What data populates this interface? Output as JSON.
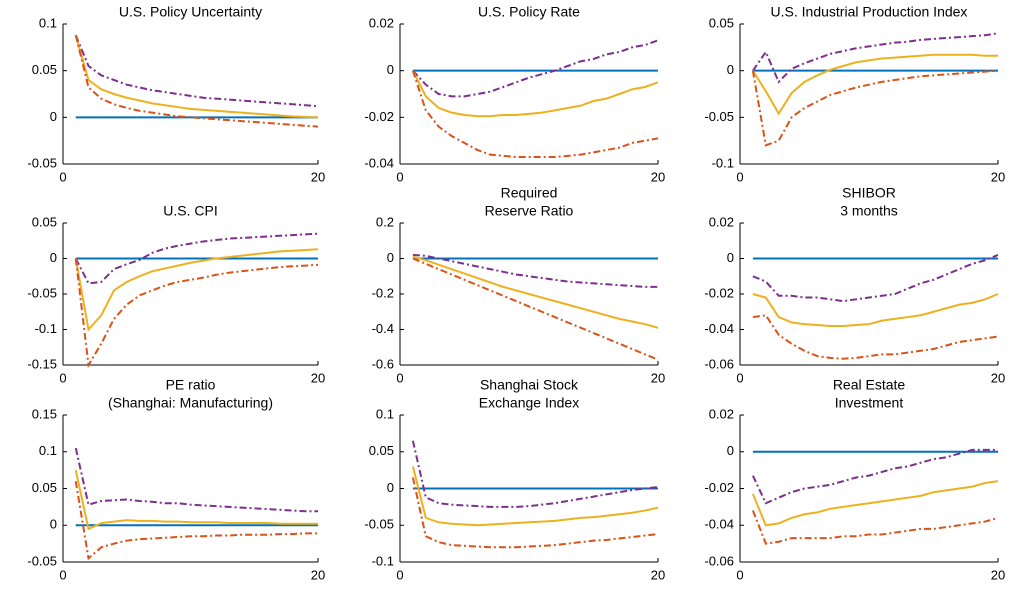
{
  "chart_data": [
    {
      "type": "line",
      "title": [
        "U.S. Policy Uncertainty"
      ],
      "x": [
        1,
        2,
        3,
        4,
        5,
        6,
        7,
        8,
        9,
        10,
        11,
        12,
        13,
        14,
        15,
        16,
        17,
        18,
        19,
        20
      ],
      "xlim": [
        0,
        20
      ],
      "xticks": [
        0,
        20
      ],
      "ylim": [
        -0.05,
        0.1
      ],
      "yticks": [
        -0.05,
        0,
        0.05,
        0.1
      ],
      "zero_line_color": "#0072BD",
      "series": [
        {
          "color": "#7E2F8E",
          "dash": "dashdot",
          "values": [
            0.088,
            0.055,
            0.045,
            0.04,
            0.035,
            0.032,
            0.029,
            0.027,
            0.025,
            0.023,
            0.021,
            0.02,
            0.019,
            0.018,
            0.017,
            0.016,
            0.015,
            0.014,
            0.013,
            0.012
          ]
        },
        {
          "color": "#EDB120",
          "dash": "solid",
          "values": [
            0.088,
            0.04,
            0.03,
            0.025,
            0.021,
            0.018,
            0.015,
            0.013,
            0.011,
            0.009,
            0.008,
            0.007,
            0.006,
            0.005,
            0.004,
            0.003,
            0.002,
            0.001,
            0.0005,
            0
          ]
        },
        {
          "color": "#D95319",
          "dash": "dashdot",
          "values": [
            0.088,
            0.032,
            0.02,
            0.014,
            0.01,
            0.007,
            0.005,
            0.003,
            0.001,
            0,
            -0.001,
            -0.002,
            -0.003,
            -0.004,
            -0.005,
            -0.006,
            -0.007,
            -0.008,
            -0.009,
            -0.01
          ]
        }
      ]
    },
    {
      "type": "line",
      "title": [
        "U.S. Policy Rate"
      ],
      "x": [
        1,
        2,
        3,
        4,
        5,
        6,
        7,
        8,
        9,
        10,
        11,
        12,
        13,
        14,
        15,
        16,
        17,
        18,
        19,
        20
      ],
      "xlim": [
        0,
        20
      ],
      "xticks": [
        0,
        20
      ],
      "ylim": [
        -0.04,
        0.02
      ],
      "yticks": [
        -0.04,
        -0.02,
        0,
        0.02
      ],
      "zero_line_color": "#0072BD",
      "series": [
        {
          "color": "#7E2F8E",
          "dash": "dashdot",
          "values": [
            0,
            -0.006,
            -0.01,
            -0.011,
            -0.011,
            -0.01,
            -0.009,
            -0.007,
            -0.005,
            -0.003,
            -0.0015,
            0,
            0.002,
            0.004,
            0.005,
            0.007,
            0.008,
            0.01,
            0.011,
            0.013
          ]
        },
        {
          "color": "#EDB120",
          "dash": "solid",
          "values": [
            0,
            -0.011,
            -0.016,
            -0.018,
            -0.019,
            -0.0195,
            -0.0195,
            -0.019,
            -0.019,
            -0.0185,
            -0.018,
            -0.017,
            -0.016,
            -0.015,
            -0.013,
            -0.012,
            -0.01,
            -0.008,
            -0.007,
            -0.005
          ]
        },
        {
          "color": "#D95319",
          "dash": "dashdot",
          "values": [
            0,
            -0.017,
            -0.024,
            -0.028,
            -0.031,
            -0.034,
            -0.036,
            -0.0365,
            -0.037,
            -0.037,
            -0.037,
            -0.037,
            -0.0365,
            -0.036,
            -0.035,
            -0.034,
            -0.033,
            -0.031,
            -0.03,
            -0.029
          ]
        }
      ]
    },
    {
      "type": "line",
      "title": [
        "U.S. Industrial Production Index"
      ],
      "x": [
        1,
        2,
        3,
        4,
        5,
        6,
        7,
        8,
        9,
        10,
        11,
        12,
        13,
        14,
        15,
        16,
        17,
        18,
        19,
        20
      ],
      "xlim": [
        0,
        20
      ],
      "xticks": [
        0,
        20
      ],
      "ylim": [
        -0.1,
        0.05
      ],
      "yticks": [
        -0.1,
        -0.05,
        0,
        0.05
      ],
      "zero_line_color": "#0072BD",
      "series": [
        {
          "color": "#7E2F8E",
          "dash": "dashdot",
          "values": [
            0,
            0.02,
            -0.012,
            0.002,
            0.008,
            0.013,
            0.018,
            0.021,
            0.024,
            0.026,
            0.028,
            0.03,
            0.031,
            0.033,
            0.034,
            0.035,
            0.036,
            0.037,
            0.038,
            0.04
          ]
        },
        {
          "color": "#EDB120",
          "dash": "solid",
          "values": [
            0,
            -0.022,
            -0.046,
            -0.024,
            -0.012,
            -0.005,
            0.001,
            0.005,
            0.009,
            0.011,
            0.013,
            0.014,
            0.015,
            0.016,
            0.017,
            0.017,
            0.017,
            0.017,
            0.016,
            0.016
          ]
        },
        {
          "color": "#D95319",
          "dash": "dashdot",
          "values": [
            0,
            -0.08,
            -0.075,
            -0.05,
            -0.04,
            -0.033,
            -0.026,
            -0.022,
            -0.018,
            -0.015,
            -0.012,
            -0.01,
            -0.008,
            -0.006,
            -0.005,
            -0.004,
            -0.003,
            -0.002,
            -0.001,
            0
          ]
        }
      ]
    },
    {
      "type": "line",
      "title": [
        "U.S. CPI"
      ],
      "x": [
        1,
        2,
        3,
        4,
        5,
        6,
        7,
        8,
        9,
        10,
        11,
        12,
        13,
        14,
        15,
        16,
        17,
        18,
        19,
        20
      ],
      "xlim": [
        0,
        20
      ],
      "xticks": [
        0,
        20
      ],
      "ylim": [
        -0.15,
        0.05
      ],
      "yticks": [
        -0.15,
        -0.1,
        -0.05,
        0,
        0.05
      ],
      "zero_line_color": "#0072BD",
      "series": [
        {
          "color": "#7E2F8E",
          "dash": "dashdot",
          "values": [
            0,
            -0.035,
            -0.033,
            -0.015,
            -0.008,
            -0.002,
            0.008,
            0.014,
            0.018,
            0.021,
            0.024,
            0.026,
            0.028,
            0.029,
            0.03,
            0.031,
            0.032,
            0.033,
            0.034,
            0.035
          ]
        },
        {
          "color": "#EDB120",
          "dash": "solid",
          "values": [
            0,
            -0.1,
            -0.08,
            -0.045,
            -0.033,
            -0.025,
            -0.018,
            -0.014,
            -0.01,
            -0.006,
            -0.003,
            0,
            0.002,
            0.004,
            0.006,
            0.008,
            0.01,
            0.011,
            0.012,
            0.013
          ]
        },
        {
          "color": "#D95319",
          "dash": "dashdot",
          "values": [
            0,
            -0.15,
            -0.12,
            -0.085,
            -0.065,
            -0.052,
            -0.045,
            -0.038,
            -0.033,
            -0.03,
            -0.027,
            -0.023,
            -0.02,
            -0.018,
            -0.016,
            -0.014,
            -0.012,
            -0.011,
            -0.01,
            -0.009
          ]
        }
      ]
    },
    {
      "type": "line",
      "title": [
        "Required",
        "Reserve Ratio"
      ],
      "x": [
        1,
        2,
        3,
        4,
        5,
        6,
        7,
        8,
        9,
        10,
        11,
        12,
        13,
        14,
        15,
        16,
        17,
        18,
        19,
        20
      ],
      "xlim": [
        0,
        20
      ],
      "xticks": [
        0,
        20
      ],
      "ylim": [
        -0.6,
        0.2
      ],
      "yticks": [
        -0.6,
        -0.4,
        -0.2,
        0,
        0.2
      ],
      "zero_line_color": "#0072BD",
      "series": [
        {
          "color": "#7E2F8E",
          "dash": "dashdot",
          "values": [
            0.02,
            0.015,
            0,
            -0.015,
            -0.03,
            -0.045,
            -0.06,
            -0.075,
            -0.09,
            -0.1,
            -0.11,
            -0.12,
            -0.13,
            -0.135,
            -0.14,
            -0.145,
            -0.15,
            -0.155,
            -0.16,
            -0.16
          ]
        },
        {
          "color": "#EDB120",
          "dash": "solid",
          "values": [
            0.01,
            -0.01,
            -0.035,
            -0.06,
            -0.085,
            -0.11,
            -0.135,
            -0.16,
            -0.18,
            -0.2,
            -0.22,
            -0.24,
            -0.26,
            -0.28,
            -0.3,
            -0.32,
            -0.34,
            -0.355,
            -0.37,
            -0.39
          ]
        },
        {
          "color": "#D95319",
          "dash": "dashdot",
          "values": [
            0,
            -0.03,
            -0.06,
            -0.09,
            -0.12,
            -0.15,
            -0.18,
            -0.21,
            -0.24,
            -0.27,
            -0.3,
            -0.33,
            -0.36,
            -0.39,
            -0.42,
            -0.45,
            -0.48,
            -0.51,
            -0.54,
            -0.57
          ]
        }
      ]
    },
    {
      "type": "line",
      "title": [
        "SHIBOR",
        "3 months"
      ],
      "x": [
        1,
        2,
        3,
        4,
        5,
        6,
        7,
        8,
        9,
        10,
        11,
        12,
        13,
        14,
        15,
        16,
        17,
        18,
        19,
        20
      ],
      "xlim": [
        0,
        20
      ],
      "xticks": [
        0,
        20
      ],
      "ylim": [
        -0.06,
        0.02
      ],
      "yticks": [
        -0.06,
        -0.04,
        -0.02,
        0,
        0.02
      ],
      "zero_line_color": "#0072BD",
      "series": [
        {
          "color": "#7E2F8E",
          "dash": "dashdot",
          "values": [
            -0.01,
            -0.013,
            -0.021,
            -0.021,
            -0.022,
            -0.022,
            -0.023,
            -0.024,
            -0.023,
            -0.022,
            -0.021,
            -0.02,
            -0.017,
            -0.014,
            -0.012,
            -0.009,
            -0.006,
            -0.003,
            -0.001,
            0.002
          ]
        },
        {
          "color": "#EDB120",
          "dash": "solid",
          "values": [
            -0.02,
            -0.022,
            -0.033,
            -0.036,
            -0.037,
            -0.0375,
            -0.038,
            -0.038,
            -0.0375,
            -0.037,
            -0.035,
            -0.034,
            -0.033,
            -0.032,
            -0.03,
            -0.028,
            -0.026,
            -0.025,
            -0.023,
            -0.02
          ]
        },
        {
          "color": "#D95319",
          "dash": "dashdot",
          "values": [
            -0.033,
            -0.032,
            -0.043,
            -0.048,
            -0.052,
            -0.055,
            -0.056,
            -0.0565,
            -0.056,
            -0.055,
            -0.054,
            -0.054,
            -0.053,
            -0.052,
            -0.051,
            -0.049,
            -0.047,
            -0.046,
            -0.045,
            -0.044
          ]
        }
      ]
    },
    {
      "type": "line",
      "title": [
        "PE ratio",
        "(Shanghai: Manufacturing)"
      ],
      "x": [
        1,
        2,
        3,
        4,
        5,
        6,
        7,
        8,
        9,
        10,
        11,
        12,
        13,
        14,
        15,
        16,
        17,
        18,
        19,
        20
      ],
      "xlim": [
        0,
        20
      ],
      "xticks": [
        0,
        20
      ],
      "ylim": [
        -0.05,
        0.15
      ],
      "yticks": [
        -0.05,
        0,
        0.05,
        0.1,
        0.15
      ],
      "zero_line_color": "#0072BD",
      "series": [
        {
          "color": "#7E2F8E",
          "dash": "dashdot",
          "values": [
            0.105,
            0.028,
            0.033,
            0.034,
            0.035,
            0.033,
            0.032,
            0.03,
            0.03,
            0.028,
            0.027,
            0.026,
            0.025,
            0.024,
            0.023,
            0.022,
            0.021,
            0.02,
            0.019,
            0.019
          ]
        },
        {
          "color": "#EDB120",
          "dash": "solid",
          "values": [
            0.075,
            -0.005,
            0.003,
            0.005,
            0.007,
            0.006,
            0.006,
            0.005,
            0.005,
            0.004,
            0.004,
            0.004,
            0.003,
            0.003,
            0.003,
            0.003,
            0.002,
            0.002,
            0.002,
            0.002
          ]
        },
        {
          "color": "#D95319",
          "dash": "dashdot",
          "values": [
            0.06,
            -0.045,
            -0.03,
            -0.025,
            -0.021,
            -0.019,
            -0.018,
            -0.017,
            -0.016,
            -0.015,
            -0.015,
            -0.014,
            -0.014,
            -0.013,
            -0.013,
            -0.013,
            -0.012,
            -0.012,
            -0.011,
            -0.011
          ]
        }
      ]
    },
    {
      "type": "line",
      "title": [
        "Shanghai Stock",
        "Exchange Index"
      ],
      "x": [
        1,
        2,
        3,
        4,
        5,
        6,
        7,
        8,
        9,
        10,
        11,
        12,
        13,
        14,
        15,
        16,
        17,
        18,
        19,
        20
      ],
      "xlim": [
        0,
        20
      ],
      "xticks": [
        0,
        20
      ],
      "ylim": [
        -0.1,
        0.1
      ],
      "yticks": [
        -0.1,
        -0.05,
        0,
        0.05,
        0.1
      ],
      "zero_line_color": "#0072BD",
      "series": [
        {
          "color": "#7E2F8E",
          "dash": "dashdot",
          "values": [
            0.065,
            -0.012,
            -0.02,
            -0.022,
            -0.023,
            -0.024,
            -0.025,
            -0.025,
            -0.025,
            -0.024,
            -0.022,
            -0.02,
            -0.017,
            -0.014,
            -0.011,
            -0.008,
            -0.005,
            -0.002,
            0,
            0.002
          ]
        },
        {
          "color": "#EDB120",
          "dash": "solid",
          "values": [
            0.03,
            -0.04,
            -0.046,
            -0.048,
            -0.049,
            -0.05,
            -0.049,
            -0.048,
            -0.047,
            -0.046,
            -0.045,
            -0.044,
            -0.042,
            -0.04,
            -0.039,
            -0.037,
            -0.035,
            -0.033,
            -0.03,
            -0.026
          ]
        },
        {
          "color": "#D95319",
          "dash": "dashdot",
          "values": [
            0.015,
            -0.065,
            -0.073,
            -0.077,
            -0.078,
            -0.079,
            -0.08,
            -0.08,
            -0.08,
            -0.079,
            -0.078,
            -0.077,
            -0.075,
            -0.073,
            -0.071,
            -0.07,
            -0.068,
            -0.066,
            -0.064,
            -0.062
          ]
        }
      ]
    },
    {
      "type": "line",
      "title": [
        "Real Estate",
        "Investment"
      ],
      "x": [
        1,
        2,
        3,
        4,
        5,
        6,
        7,
        8,
        9,
        10,
        11,
        12,
        13,
        14,
        15,
        16,
        17,
        18,
        19,
        20
      ],
      "xlim": [
        0,
        20
      ],
      "xticks": [
        0,
        20
      ],
      "ylim": [
        -0.06,
        0.02
      ],
      "yticks": [
        -0.06,
        -0.04,
        -0.02,
        0,
        0.02
      ],
      "zero_line_color": "#0072BD",
      "series": [
        {
          "color": "#7E2F8E",
          "dash": "dashdot",
          "values": [
            -0.013,
            -0.028,
            -0.025,
            -0.022,
            -0.02,
            -0.019,
            -0.018,
            -0.016,
            -0.014,
            -0.013,
            -0.011,
            -0.009,
            -0.008,
            -0.006,
            -0.004,
            -0.003,
            -0.001,
            0.001,
            0.001,
            0.001
          ]
        },
        {
          "color": "#EDB120",
          "dash": "solid",
          "values": [
            -0.023,
            -0.04,
            -0.039,
            -0.036,
            -0.034,
            -0.033,
            -0.031,
            -0.03,
            -0.029,
            -0.028,
            -0.027,
            -0.026,
            -0.025,
            -0.024,
            -0.022,
            -0.021,
            -0.02,
            -0.019,
            -0.017,
            -0.016
          ]
        },
        {
          "color": "#D95319",
          "dash": "dashdot",
          "values": [
            -0.032,
            -0.05,
            -0.049,
            -0.047,
            -0.047,
            -0.047,
            -0.047,
            -0.046,
            -0.046,
            -0.045,
            -0.045,
            -0.044,
            -0.043,
            -0.042,
            -0.042,
            -0.041,
            -0.04,
            -0.039,
            -0.038,
            -0.036
          ]
        }
      ]
    }
  ]
}
